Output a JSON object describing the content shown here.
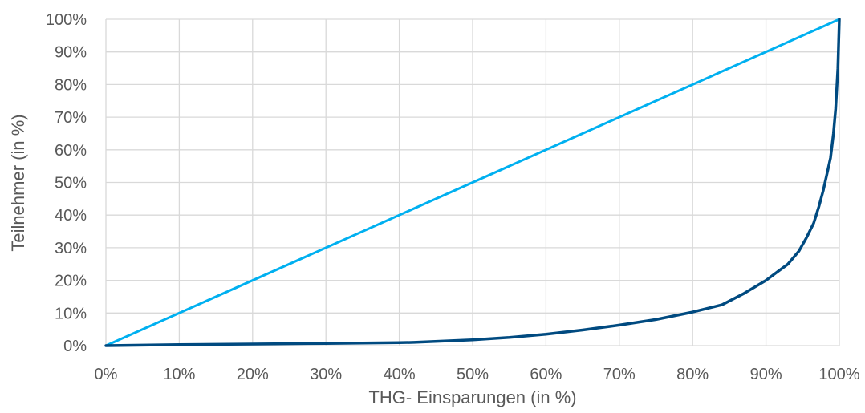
{
  "chart_data": {
    "type": "line",
    "title": "",
    "xlabel": "THG- Einsparungen (in %)",
    "ylabel": "Teilnehmer (in %)",
    "xlim": [
      0,
      100
    ],
    "ylim": [
      0,
      100
    ],
    "grid": true,
    "legend": "none",
    "x_ticks": [
      "0%",
      "10%",
      "20%",
      "30%",
      "40%",
      "50%",
      "60%",
      "70%",
      "80%",
      "90%",
      "100%"
    ],
    "y_ticks": [
      "0%",
      "10%",
      "20%",
      "30%",
      "40%",
      "50%",
      "60%",
      "70%",
      "80%",
      "90%",
      "100%"
    ],
    "series": [
      {
        "color": "#00b0f0",
        "x": [
          0,
          100
        ],
        "y": [
          0,
          100
        ]
      },
      {
        "color": "#004a80",
        "x": [
          0,
          10,
          20,
          30,
          40,
          42,
          50,
          55,
          60,
          65,
          70,
          75,
          80,
          84,
          87,
          90,
          91.5,
          93,
          94.5,
          95.5,
          96.5,
          97.2,
          97.8,
          98.3,
          98.8,
          99.2,
          99.5,
          99.8,
          100
        ],
        "y": [
          0,
          0.3,
          0.5,
          0.7,
          0.9,
          1,
          1.8,
          2.5,
          3.5,
          4.8,
          6.3,
          8,
          10.3,
          12.5,
          16,
          20,
          22.5,
          25,
          29,
          33,
          37.5,
          42.5,
          47.5,
          52.5,
          57.5,
          65,
          72.5,
          85,
          100
        ]
      }
    ]
  }
}
